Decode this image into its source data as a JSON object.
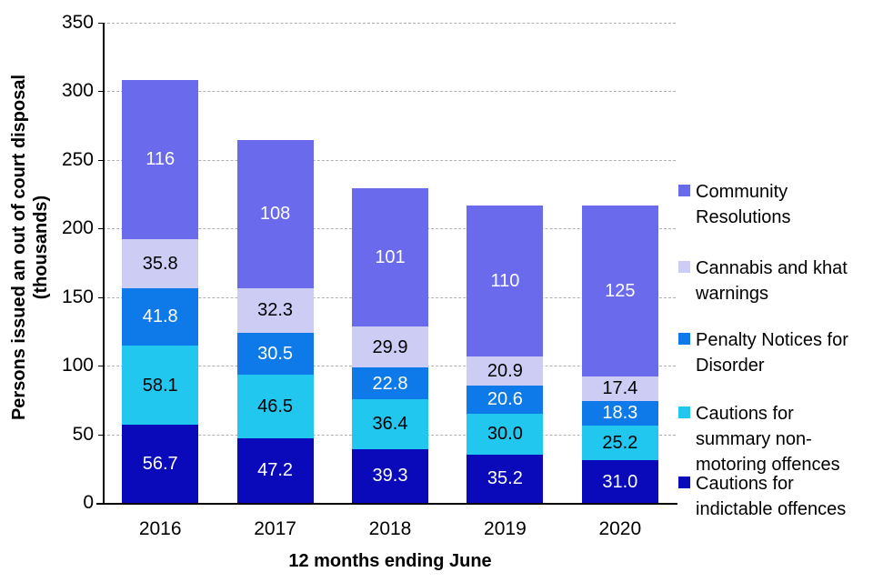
{
  "chart_data": {
    "type": "bar",
    "stacked": true,
    "xlabel": "12 months ending June",
    "ylabel": "Persons issued an out of court disposal\n(thousands)",
    "categories": [
      "2016",
      "2017",
      "2018",
      "2019",
      "2020"
    ],
    "series": [
      {
        "name": "Cautions for indictable offences",
        "legend_label": "Cautions for\nindictable offences",
        "color": "#0a0abb",
        "label_color": "#ffffff",
        "values": [
          56.7,
          47.2,
          39.3,
          35.2,
          31.0
        ],
        "labels": [
          "56.7",
          "47.2",
          "39.3",
          "35.2",
          "31.0"
        ]
      },
      {
        "name": "Cautions for summary non-motoring offences",
        "legend_label": "Cautions for\nsummary non-\nmotoring offences",
        "color": "#22c7f0",
        "label_color": "#000000",
        "values": [
          58.1,
          46.5,
          36.4,
          30.0,
          25.2
        ],
        "labels": [
          "58.1",
          "46.5",
          "36.4",
          "30.0",
          "25.2"
        ]
      },
      {
        "name": "Penalty Notices for Disorder",
        "legend_label": "Penalty Notices for\nDisorder",
        "color": "#0e79e8",
        "label_color": "#ffffff",
        "values": [
          41.8,
          30.5,
          22.8,
          20.6,
          18.3
        ],
        "labels": [
          "41.8",
          "30.5",
          "22.8",
          "20.6",
          "18.3"
        ]
      },
      {
        "name": "Cannabis and khat warnings",
        "legend_label": "Cannabis and khat\nwarnings",
        "color": "#cdccf5",
        "label_color": "#000000",
        "values": [
          35.8,
          32.3,
          29.9,
          20.9,
          17.4
        ],
        "labels": [
          "35.8",
          "32.3",
          "29.9",
          "20.9",
          "17.4"
        ]
      },
      {
        "name": "Community Resolutions",
        "legend_label": "Community\nResolutions",
        "color": "#6a6aec",
        "label_color": "#ffffff",
        "values": [
          116,
          108,
          101,
          110,
          125
        ],
        "labels": [
          "116",
          "108",
          "101",
          "110",
          "125"
        ]
      }
    ],
    "y_ticks": [
      "350",
      "300",
      "250",
      "200",
      "150",
      "100",
      "50",
      "0"
    ],
    "ylim": [
      0,
      350
    ],
    "grid": "dashed-horizontal",
    "legend_position": "right",
    "legend_order_top_to_bottom": [
      4,
      3,
      2,
      1,
      0
    ]
  }
}
